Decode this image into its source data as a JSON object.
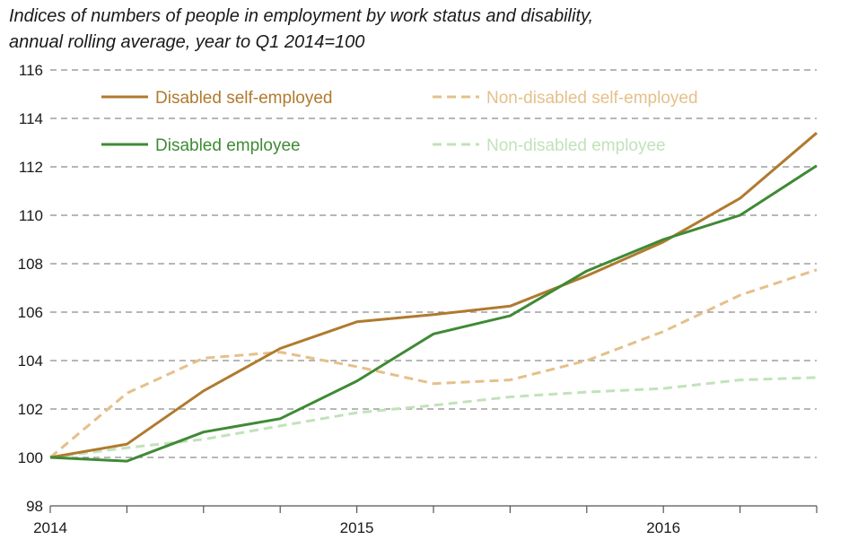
{
  "chart_data": {
    "type": "line",
    "title_lines": [
      "Indices of numbers of people in employment by work status and disability,",
      "annual rolling average, year to Q1 2014=100"
    ],
    "xlabel": "",
    "ylabel": "",
    "x": [
      0,
      1,
      2,
      3,
      4,
      5,
      6,
      7,
      8,
      9,
      10
    ],
    "x_tick_labels": [
      {
        "x": 0,
        "label": "2014"
      },
      {
        "x": 4,
        "label": "2015"
      },
      {
        "x": 8,
        "label": "2016"
      }
    ],
    "ylim": [
      98,
      116
    ],
    "yticks": [
      98,
      100,
      102,
      104,
      106,
      108,
      110,
      112,
      114,
      116
    ],
    "grid": true,
    "legend": "top",
    "series": [
      {
        "name": "Disabled self-employed",
        "color": "#b07a2e",
        "dash": false,
        "values": [
          100.0,
          100.55,
          102.75,
          104.5,
          105.6,
          105.9,
          106.25,
          107.5,
          108.9,
          110.7,
          113.4
        ]
      },
      {
        "name": "Non-disabled self-employed",
        "color": "#e5c08a",
        "dash": true,
        "values": [
          100.0,
          102.65,
          104.1,
          104.35,
          103.75,
          103.05,
          103.2,
          104.0,
          105.2,
          106.7,
          107.75
        ]
      },
      {
        "name": "Disabled employee",
        "color": "#3f8a35",
        "dash": false,
        "values": [
          100.0,
          99.85,
          101.05,
          101.6,
          103.15,
          105.1,
          105.85,
          107.7,
          109.0,
          110.0,
          112.05
        ]
      },
      {
        "name": "Non-disabled employee",
        "color": "#c2e2bb",
        "dash": true,
        "values": [
          100.0,
          100.4,
          100.75,
          101.3,
          101.85,
          102.15,
          102.5,
          102.7,
          102.85,
          103.2,
          103.3
        ]
      }
    ]
  }
}
